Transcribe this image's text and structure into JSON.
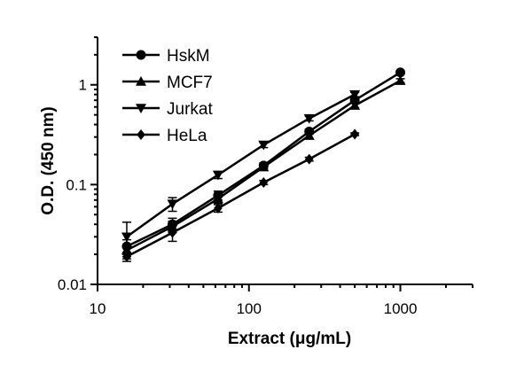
{
  "chart_data": {
    "type": "line",
    "xlabel": "Extract (μg/mL)",
    "ylabel": "O.D. (450 nm)",
    "x_scale": "log",
    "y_scale": "log",
    "xlim": [
      10,
      3000
    ],
    "ylim": [
      0.01,
      3
    ],
    "x_ticks": [
      10,
      100,
      1000
    ],
    "x_tick_labels": [
      "10",
      "100",
      "1000"
    ],
    "y_ticks": [
      0.01,
      0.1,
      1
    ],
    "y_tick_labels": [
      "0.01",
      "0.1",
      "1"
    ],
    "grid": false,
    "legend_position": "top-left",
    "series": [
      {
        "name": "HskM",
        "marker": "circle",
        "x": [
          15.6,
          31.25,
          62.5,
          125,
          250,
          500,
          1000
        ],
        "y": [
          0.024,
          0.04,
          0.078,
          0.155,
          0.34,
          0.7,
          1.33
        ],
        "err": [
          0.004,
          0.006,
          0.008,
          0.01,
          0.02,
          0.04,
          0.05
        ]
      },
      {
        "name": "MCF7",
        "marker": "triangle-up",
        "x": [
          15.6,
          31.25,
          62.5,
          125,
          250,
          500,
          1000
        ],
        "y": [
          0.022,
          0.038,
          0.072,
          0.15,
          0.31,
          0.62,
          1.1
        ],
        "err": [
          0.003,
          0.005,
          0.007,
          0.01,
          0.02,
          0.03,
          0.05
        ]
      },
      {
        "name": "Jurkat",
        "marker": "triangle-down",
        "x": [
          15.6,
          31.25,
          62.5,
          125,
          250,
          500
        ],
        "y": [
          0.03,
          0.064,
          0.125,
          0.25,
          0.46,
          0.8
        ],
        "err": [
          0.012,
          0.01,
          0.01,
          0.015,
          0.025,
          0.04
        ]
      },
      {
        "name": "HeLa",
        "marker": "diamond",
        "x": [
          15.6,
          31.25,
          62.5,
          125,
          250,
          500
        ],
        "y": [
          0.019,
          0.033,
          0.058,
          0.105,
          0.18,
          0.32
        ],
        "err": [
          0.002,
          0.006,
          0.005,
          0.005,
          0.008,
          0.01
        ]
      }
    ]
  }
}
